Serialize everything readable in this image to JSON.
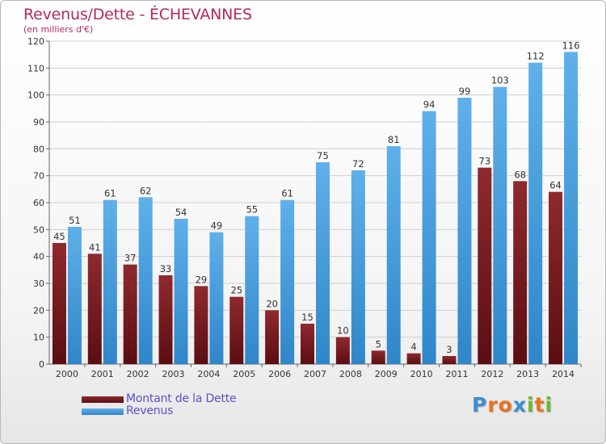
{
  "header": {
    "title": "Revenus/Dette - ÉCHEVANNES",
    "subtitle": "(en milliers d'€)"
  },
  "colors": {
    "title": "#b22a5e",
    "dette": "#7a1f22",
    "revenus": "#4fa3e0",
    "legend_text": "#5b52c8"
  },
  "legend": {
    "dette_label": "Montant de la Dette",
    "revenus_label": "Revenus"
  },
  "logo": {
    "text": "Proxiti"
  },
  "chart_data": {
    "type": "bar",
    "title": "Revenus/Dette - ÉCHEVANNES",
    "subtitle": "(en milliers d'€)",
    "xlabel": "",
    "ylabel": "",
    "ylim": [
      0,
      120
    ],
    "ytick_step": 10,
    "grid": true,
    "legend_position": "bottom-left",
    "categories": [
      "2000",
      "2001",
      "2002",
      "2003",
      "2004",
      "2005",
      "2006",
      "2007",
      "2008",
      "2009",
      "2010",
      "2011",
      "2012",
      "2013",
      "2014"
    ],
    "series": [
      {
        "name": "Montant de la Dette",
        "color": "#7a1f22",
        "values": [
          45,
          41,
          37,
          33,
          29,
          25,
          20,
          15,
          10,
          5,
          4,
          3,
          73,
          68,
          64
        ]
      },
      {
        "name": "Revenus",
        "color": "#4fa3e0",
        "values": [
          51,
          61,
          62,
          54,
          49,
          55,
          61,
          75,
          72,
          81,
          94,
          99,
          103,
          112,
          116
        ]
      }
    ]
  }
}
